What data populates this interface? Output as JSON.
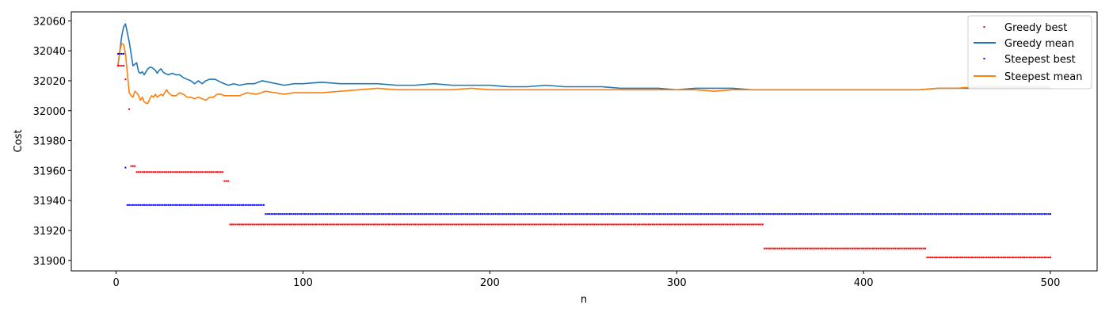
{
  "chart_data": {
    "type": "line",
    "title": "",
    "xlabel": "n",
    "ylabel": "Cost",
    "xlim": [
      -24,
      525
    ],
    "ylim": [
      31893,
      32066
    ],
    "x_ticks": [
      0,
      100,
      200,
      300,
      400,
      500
    ],
    "y_ticks": [
      31900,
      31920,
      31940,
      31960,
      31980,
      32000,
      32020,
      32040,
      32060
    ],
    "grid": false,
    "legend_position": "top-right",
    "series": [
      {
        "name": "Greedy best",
        "style": "points",
        "color": "#ff0000",
        "segments": [
          {
            "x_start": 1,
            "x_end": 4,
            "y": 32030
          },
          {
            "x_start": 5,
            "x_end": 5,
            "y": 32021
          },
          {
            "x_start": 7,
            "x_end": 7,
            "y": 32001
          },
          {
            "x_start": 8,
            "x_end": 10,
            "y": 31963
          },
          {
            "x_start": 11,
            "x_end": 57,
            "y": 31959
          },
          {
            "x_start": 58,
            "x_end": 60,
            "y": 31953
          },
          {
            "x_start": 61,
            "x_end": 346,
            "y": 31924
          },
          {
            "x_start": 347,
            "x_end": 433,
            "y": 31908
          },
          {
            "x_start": 434,
            "x_end": 500,
            "y": 31902
          }
        ]
      },
      {
        "name": "Greedy mean",
        "style": "line",
        "color": "#1f77b4",
        "points": [
          [
            1,
            32030
          ],
          [
            2,
            32040
          ],
          [
            3,
            32050
          ],
          [
            4,
            32056
          ],
          [
            5,
            32058
          ],
          [
            6,
            32052
          ],
          [
            7,
            32046
          ],
          [
            8,
            32038
          ],
          [
            9,
            32030
          ],
          [
            10,
            32031
          ],
          [
            11,
            32032
          ],
          [
            12,
            32026
          ],
          [
            13,
            32025
          ],
          [
            14,
            32026
          ],
          [
            15,
            32024
          ],
          [
            16,
            32026
          ],
          [
            17,
            32028
          ],
          [
            18,
            32029
          ],
          [
            19,
            32029
          ],
          [
            20,
            32028
          ],
          [
            21,
            32027
          ],
          [
            22,
            32025
          ],
          [
            23,
            32027
          ],
          [
            24,
            32028
          ],
          [
            25,
            32026
          ],
          [
            26,
            32025
          ],
          [
            28,
            32024
          ],
          [
            30,
            32025
          ],
          [
            32,
            32024
          ],
          [
            34,
            32024
          ],
          [
            36,
            32022
          ],
          [
            38,
            32021
          ],
          [
            40,
            32020
          ],
          [
            42,
            32018
          ],
          [
            44,
            32020
          ],
          [
            46,
            32018
          ],
          [
            48,
            32020
          ],
          [
            50,
            32021
          ],
          [
            53,
            32021
          ],
          [
            56,
            32019
          ],
          [
            58,
            32018
          ],
          [
            60,
            32017
          ],
          [
            63,
            32018
          ],
          [
            66,
            32017
          ],
          [
            70,
            32018
          ],
          [
            74,
            32018
          ],
          [
            78,
            32020
          ],
          [
            82,
            32019
          ],
          [
            86,
            32018
          ],
          [
            90,
            32017
          ],
          [
            95,
            32018
          ],
          [
            100,
            32018
          ],
          [
            110,
            32019
          ],
          [
            120,
            32018
          ],
          [
            130,
            32018
          ],
          [
            140,
            32018
          ],
          [
            150,
            32017
          ],
          [
            160,
            32017
          ],
          [
            170,
            32018
          ],
          [
            180,
            32017
          ],
          [
            190,
            32017
          ],
          [
            200,
            32017
          ],
          [
            210,
            32016
          ],
          [
            220,
            32016
          ],
          [
            230,
            32017
          ],
          [
            240,
            32016
          ],
          [
            250,
            32016
          ],
          [
            260,
            32016
          ],
          [
            270,
            32015
          ],
          [
            280,
            32015
          ],
          [
            290,
            32015
          ],
          [
            300,
            32014
          ],
          [
            310,
            32015
          ],
          [
            320,
            32015
          ],
          [
            330,
            32015
          ],
          [
            340,
            32014
          ],
          [
            350,
            32014
          ],
          [
            360,
            32014
          ],
          [
            370,
            32014
          ],
          [
            380,
            32014
          ],
          [
            390,
            32014
          ],
          [
            400,
            32014
          ],
          [
            410,
            32014
          ],
          [
            420,
            32014
          ],
          [
            430,
            32014
          ],
          [
            440,
            32015
          ],
          [
            450,
            32015
          ],
          [
            460,
            32015
          ],
          [
            470,
            32015
          ],
          [
            480,
            32015
          ],
          [
            490,
            32015
          ],
          [
            500,
            32015
          ]
        ]
      },
      {
        "name": "Steepest best",
        "style": "points",
        "color": "#0000ff",
        "segments": [
          {
            "x_start": 1,
            "x_end": 4,
            "y": 32038
          },
          {
            "x_start": 5,
            "x_end": 5,
            "y": 31962
          },
          {
            "x_start": 6,
            "x_end": 79,
            "y": 31937
          },
          {
            "x_start": 80,
            "x_end": 500,
            "y": 31931
          }
        ]
      },
      {
        "name": "Steepest mean",
        "style": "line",
        "color": "#ff7f0e",
        "points": [
          [
            1,
            32031
          ],
          [
            2,
            32040
          ],
          [
            3,
            32045
          ],
          [
            4,
            32044
          ],
          [
            5,
            32038
          ],
          [
            6,
            32025
          ],
          [
            7,
            32012
          ],
          [
            8,
            32010
          ],
          [
            9,
            32009
          ],
          [
            10,
            32013
          ],
          [
            11,
            32012
          ],
          [
            12,
            32010
          ],
          [
            13,
            32007
          ],
          [
            14,
            32009
          ],
          [
            15,
            32006
          ],
          [
            16,
            32005
          ],
          [
            17,
            32005
          ],
          [
            18,
            32008
          ],
          [
            19,
            32010
          ],
          [
            20,
            32009
          ],
          [
            21,
            32011
          ],
          [
            22,
            32009
          ],
          [
            23,
            32010
          ],
          [
            24,
            32011
          ],
          [
            25,
            32010
          ],
          [
            26,
            32012
          ],
          [
            27,
            32014
          ],
          [
            28,
            32012
          ],
          [
            30,
            32010
          ],
          [
            32,
            32010
          ],
          [
            34,
            32012
          ],
          [
            36,
            32011
          ],
          [
            38,
            32009
          ],
          [
            40,
            32009
          ],
          [
            42,
            32008
          ],
          [
            44,
            32009
          ],
          [
            46,
            32008
          ],
          [
            48,
            32007
          ],
          [
            50,
            32009
          ],
          [
            52,
            32009
          ],
          [
            54,
            32011
          ],
          [
            56,
            32011
          ],
          [
            58,
            32010
          ],
          [
            60,
            32010
          ],
          [
            63,
            32010
          ],
          [
            66,
            32010
          ],
          [
            70,
            32012
          ],
          [
            75,
            32011
          ],
          [
            80,
            32013
          ],
          [
            85,
            32012
          ],
          [
            90,
            32011
          ],
          [
            95,
            32012
          ],
          [
            100,
            32012
          ],
          [
            110,
            32012
          ],
          [
            120,
            32013
          ],
          [
            130,
            32014
          ],
          [
            140,
            32015
          ],
          [
            150,
            32014
          ],
          [
            160,
            32014
          ],
          [
            170,
            32014
          ],
          [
            180,
            32014
          ],
          [
            190,
            32015
          ],
          [
            200,
            32014
          ],
          [
            210,
            32014
          ],
          [
            220,
            32014
          ],
          [
            230,
            32014
          ],
          [
            240,
            32014
          ],
          [
            250,
            32014
          ],
          [
            260,
            32014
          ],
          [
            270,
            32014
          ],
          [
            280,
            32014
          ],
          [
            290,
            32014
          ],
          [
            300,
            32014
          ],
          [
            310,
            32014
          ],
          [
            320,
            32013
          ],
          [
            330,
            32014
          ],
          [
            340,
            32014
          ],
          [
            350,
            32014
          ],
          [
            360,
            32014
          ],
          [
            370,
            32014
          ],
          [
            380,
            32014
          ],
          [
            390,
            32014
          ],
          [
            400,
            32014
          ],
          [
            410,
            32014
          ],
          [
            420,
            32014
          ],
          [
            430,
            32014
          ],
          [
            440,
            32015
          ],
          [
            450,
            32015
          ],
          [
            460,
            32016
          ],
          [
            470,
            32016
          ],
          [
            480,
            32016
          ],
          [
            490,
            32016
          ],
          [
            500,
            32016
          ]
        ]
      }
    ]
  }
}
